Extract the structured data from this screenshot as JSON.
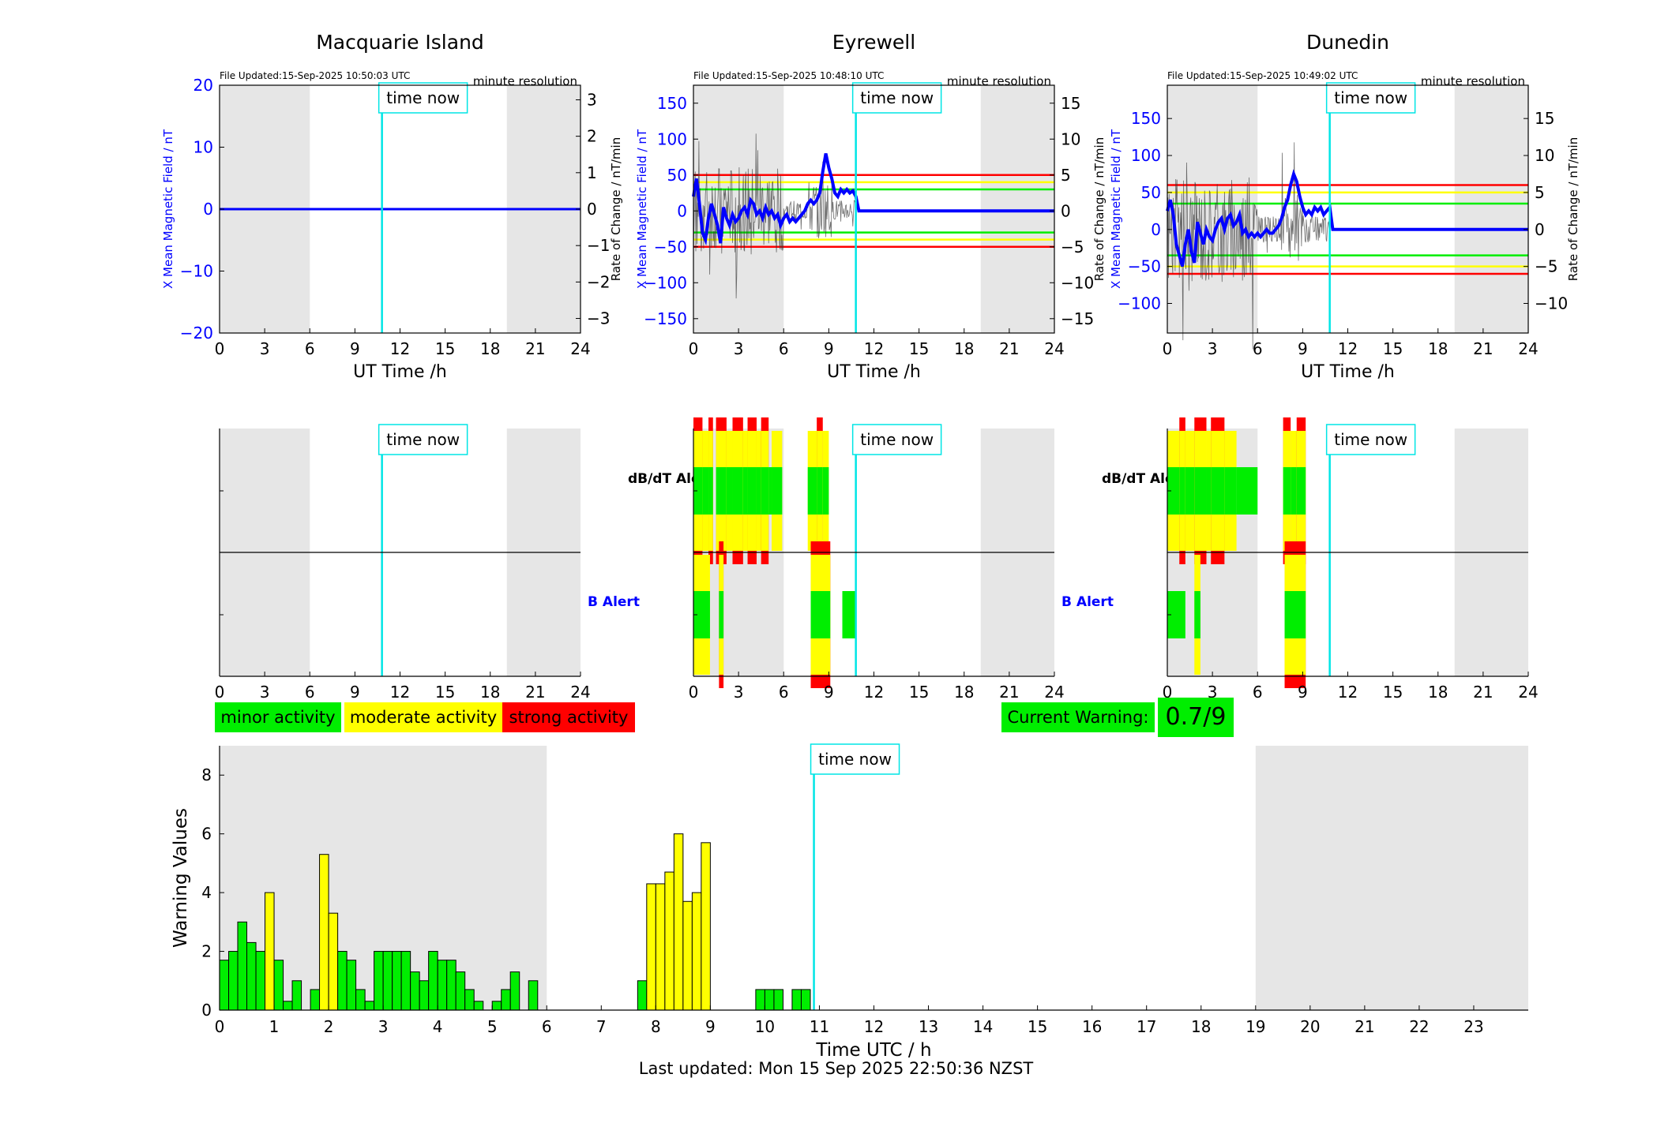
{
  "colors": {
    "night": "#e6e6e6",
    "time_now": "#00e5e5",
    "x_field": "#0000ff",
    "rate": "#333333",
    "minor": "#00ee00",
    "moderate": "#ffff00",
    "strong": "#ff0000",
    "b_alert_label": "#0000ff"
  },
  "labels": {
    "time_now": "time now",
    "file_updated_prefix": "File Updated:",
    "resolution": "minute resolution",
    "ut_xlabel": "UT Time /h",
    "ylabel_left": "X Mean Magnetic Field / nT",
    "ylabel_right": "Rate of Change / nT/min",
    "dbdt_alert": "dB/dT Alert",
    "b_alert": "B Alert"
  },
  "legend": {
    "minor": "minor activity",
    "moderate": "moderate activity",
    "strong": "strong activity",
    "current_warning_label": "Current Warning:",
    "current_warning_value": "0.7/9"
  },
  "footer": "Last updated: Mon 15 Sep 2025 22:50:36 NZST",
  "chart_data": [
    {
      "type": "line",
      "title": "Macquarie Island",
      "file_updated": "15-Sep-2025 10:50:03 UTC",
      "xlabel": "UT Time /h",
      "ylabel_left": "X Mean Magnetic Field / nT",
      "ylabel_right": "Rate of Change / nT/min",
      "xlim": [
        0,
        24
      ],
      "xticks": [
        0,
        3,
        6,
        9,
        12,
        15,
        18,
        21,
        24
      ],
      "ylim": [
        -20,
        20
      ],
      "yticks": [
        -20,
        -10,
        0,
        10,
        20
      ],
      "y2lim": [
        -3.4,
        3.4
      ],
      "y2ticks": [
        -3,
        -2,
        -1,
        0,
        1,
        2,
        3
      ],
      "night_bands": [
        [
          0,
          6
        ],
        [
          19.1,
          24
        ]
      ],
      "time_now": 10.8,
      "threshold_lines": [],
      "series": [
        {
          "x": [
            0,
            24
          ],
          "y": [
            0,
            0
          ]
        }
      ]
    },
    {
      "type": "line",
      "title": "Eyrewell",
      "file_updated": "15-Sep-2025 10:48:10 UTC",
      "xlabel": "UT Time /h",
      "ylabel_left": "X Mean Magnetic Field / nT",
      "ylabel_right": "Rate of Change / nT/min",
      "xlim": [
        0,
        24
      ],
      "xticks": [
        0,
        3,
        6,
        9,
        12,
        15,
        18,
        21,
        24
      ],
      "ylim": [
        -170,
        175
      ],
      "yticks": [
        -150,
        -100,
        -50,
        0,
        50,
        100,
        150
      ],
      "y2lim": [
        -17,
        17.5
      ],
      "y2ticks": [
        -15,
        -10,
        -5,
        0,
        5,
        10,
        15
      ],
      "night_bands": [
        [
          0,
          6
        ],
        [
          19.1,
          24
        ]
      ],
      "time_now": 10.8,
      "threshold_lines": [
        {
          "y": 50,
          "color": "#ff0000"
        },
        {
          "y": 40,
          "color": "#ffff00"
        },
        {
          "y": 30,
          "color": "#00ee00"
        },
        {
          "y": -30,
          "color": "#00ee00"
        },
        {
          "y": -40,
          "color": "#ffff00"
        },
        {
          "y": -50,
          "color": "#ff0000"
        }
      ],
      "series": [
        {
          "x": [
            0,
            0.2,
            0.4,
            0.6,
            0.8,
            1.0,
            1.2,
            1.4,
            1.6,
            1.8,
            2.0,
            2.2,
            2.4,
            2.6,
            2.8,
            3.0,
            3.2,
            3.4,
            3.6,
            3.8,
            4.0,
            4.2,
            4.4,
            4.6,
            4.8,
            5.0,
            5.2,
            5.4,
            5.6,
            5.8,
            6.0,
            6.2,
            6.4,
            6.6,
            6.8,
            7.0,
            7.2,
            7.4,
            7.6,
            7.8,
            8.0,
            8.2,
            8.4,
            8.6,
            8.8,
            9.0,
            9.2,
            9.4,
            9.6,
            9.8,
            10.0,
            10.2,
            10.4,
            10.6,
            10.8,
            11,
            24
          ],
          "y": [
            20,
            45,
            10,
            -30,
            -40,
            -10,
            10,
            -5,
            -20,
            -45,
            5,
            -10,
            -20,
            -5,
            -15,
            -10,
            0,
            5,
            -5,
            15,
            10,
            -5,
            0,
            -10,
            5,
            -5,
            0,
            -10,
            -5,
            -20,
            -10,
            -5,
            -15,
            -10,
            -15,
            -10,
            -5,
            0,
            10,
            15,
            10,
            15,
            25,
            55,
            80,
            60,
            45,
            25,
            20,
            30,
            25,
            30,
            25,
            28,
            20,
            0,
            0
          ]
        }
      ]
    },
    {
      "type": "line",
      "title": "Dunedin",
      "file_updated": "15-Sep-2025 10:49:02 UTC",
      "xlabel": "UT Time /h",
      "ylabel_left": "X Mean Magnetic Field / nT",
      "ylabel_right": "Rate of Change / nT/min",
      "xlim": [
        0,
        24
      ],
      "xticks": [
        0,
        3,
        6,
        9,
        12,
        15,
        18,
        21,
        24
      ],
      "ylim": [
        -140,
        195
      ],
      "yticks": [
        -100,
        -50,
        0,
        50,
        100,
        150
      ],
      "y2lim": [
        -14,
        19.5
      ],
      "y2ticks": [
        -10,
        -5,
        0,
        5,
        10,
        15
      ],
      "night_bands": [
        [
          0,
          6
        ],
        [
          19.1,
          24
        ]
      ],
      "time_now": 10.8,
      "threshold_lines": [
        {
          "y": 60,
          "color": "#ff0000"
        },
        {
          "y": 50,
          "color": "#ffff00"
        },
        {
          "y": 35,
          "color": "#00ee00"
        },
        {
          "y": -35,
          "color": "#00ee00"
        },
        {
          "y": -50,
          "color": "#ffff00"
        },
        {
          "y": -60,
          "color": "#ff0000"
        }
      ],
      "series": [
        {
          "x": [
            0,
            0.2,
            0.4,
            0.6,
            0.8,
            1.0,
            1.2,
            1.4,
            1.6,
            1.8,
            2.0,
            2.2,
            2.4,
            2.6,
            2.8,
            3.0,
            3.2,
            3.4,
            3.6,
            3.8,
            4.0,
            4.2,
            4.4,
            4.6,
            4.8,
            5.0,
            5.2,
            5.4,
            5.6,
            5.8,
            6.0,
            6.2,
            6.4,
            6.6,
            6.8,
            7.0,
            7.2,
            7.4,
            7.6,
            7.8,
            8.0,
            8.2,
            8.4,
            8.6,
            8.8,
            9.0,
            9.2,
            9.4,
            9.6,
            9.8,
            10.0,
            10.2,
            10.4,
            10.6,
            10.8,
            11,
            24
          ],
          "y": [
            25,
            40,
            20,
            -20,
            -35,
            -50,
            -20,
            0,
            -30,
            -45,
            10,
            -5,
            -20,
            0,
            -10,
            -15,
            0,
            10,
            15,
            0,
            15,
            20,
            5,
            10,
            20,
            -5,
            0,
            -10,
            -5,
            -10,
            -5,
            -10,
            -5,
            0,
            -5,
            -5,
            0,
            5,
            15,
            30,
            40,
            60,
            75,
            65,
            45,
            30,
            20,
            25,
            20,
            30,
            25,
            30,
            20,
            25,
            30,
            0,
            0
          ]
        }
      ]
    },
    {
      "type": "alert_bands",
      "station": "Macquarie Island",
      "xticks": [
        0,
        3,
        6,
        9,
        12,
        15,
        18,
        21,
        24
      ],
      "night_bands": [
        [
          0,
          6
        ],
        [
          19.1,
          24
        ]
      ],
      "time_now": 10.8,
      "dbdt_levels": [],
      "b_levels": []
    },
    {
      "type": "alert_bands",
      "station": "Eyrewell",
      "xticks": [
        0,
        3,
        6,
        9,
        12,
        15,
        18,
        21,
        24
      ],
      "night_bands": [
        [
          0,
          6
        ],
        [
          19.1,
          24
        ]
      ],
      "time_now": 10.8,
      "dbdt_levels": [
        {
          "x": [
            0.0,
            0.6
          ],
          "level": 3
        },
        {
          "x": [
            0.6,
            1.0
          ],
          "level": 2
        },
        {
          "x": [
            1.0,
            1.3
          ],
          "level": 3
        },
        {
          "x": [
            1.5,
            2.2
          ],
          "level": 3
        },
        {
          "x": [
            2.2,
            2.6
          ],
          "level": 2
        },
        {
          "x": [
            2.6,
            3.3
          ],
          "level": 3
        },
        {
          "x": [
            3.3,
            3.6
          ],
          "level": 2
        },
        {
          "x": [
            3.6,
            4.2
          ],
          "level": 3
        },
        {
          "x": [
            4.2,
            4.5
          ],
          "level": 2
        },
        {
          "x": [
            4.5,
            5.0
          ],
          "level": 3
        },
        {
          "x": [
            5.0,
            5.2
          ],
          "level": 1
        },
        {
          "x": [
            5.2,
            5.9
          ],
          "level": 2
        },
        {
          "x": [
            7.6,
            8.2
          ],
          "level": 2
        },
        {
          "x": [
            8.2,
            8.6
          ],
          "level": 3
        },
        {
          "x": [
            8.6,
            9.0
          ],
          "level": 2
        }
      ],
      "b_levels": [
        {
          "x": [
            0.0,
            1.1
          ],
          "level": 2
        },
        {
          "x": [
            1.7,
            2.0
          ],
          "level": 3
        },
        {
          "x": [
            7.8,
            9.1
          ],
          "level": 3
        },
        {
          "x": [
            9.9,
            10.8
          ],
          "level": 1
        }
      ]
    },
    {
      "type": "alert_bands",
      "station": "Dunedin",
      "xticks": [
        0,
        3,
        6,
        9,
        12,
        15,
        18,
        21,
        24
      ],
      "night_bands": [
        [
          0,
          6
        ],
        [
          19.1,
          24
        ]
      ],
      "time_now": 10.8,
      "dbdt_levels": [
        {
          "x": [
            0.0,
            0.8
          ],
          "level": 2
        },
        {
          "x": [
            0.8,
            1.2
          ],
          "level": 3
        },
        {
          "x": [
            1.2,
            1.8
          ],
          "level": 2
        },
        {
          "x": [
            1.8,
            2.6
          ],
          "level": 3
        },
        {
          "x": [
            2.6,
            2.9
          ],
          "level": 2
        },
        {
          "x": [
            2.9,
            3.8
          ],
          "level": 3
        },
        {
          "x": [
            3.8,
            4.6
          ],
          "level": 2
        },
        {
          "x": [
            4.6,
            6.0
          ],
          "level": 1
        },
        {
          "x": [
            7.7,
            8.2
          ],
          "level": 3
        },
        {
          "x": [
            8.2,
            8.6
          ],
          "level": 2
        },
        {
          "x": [
            8.6,
            9.2
          ],
          "level": 3
        }
      ],
      "b_levels": [
        {
          "x": [
            0.0,
            1.2
          ],
          "level": 1
        },
        {
          "x": [
            1.8,
            2.2
          ],
          "level": 2
        },
        {
          "x": [
            7.8,
            9.2
          ],
          "level": 3
        }
      ]
    },
    {
      "type": "bar",
      "xlabel": "Time UTC / h",
      "ylabel": "Warning Values",
      "xlim": [
        0,
        24
      ],
      "xticks": [
        0,
        1,
        2,
        3,
        4,
        5,
        6,
        7,
        8,
        9,
        10,
        11,
        12,
        13,
        14,
        15,
        16,
        17,
        18,
        19,
        20,
        21,
        22,
        23
      ],
      "ylim": [
        0,
        9
      ],
      "yticks": [
        0,
        2,
        4,
        6,
        8
      ],
      "night_bands": [
        [
          0,
          6
        ],
        [
          19,
          24
        ]
      ],
      "time_now": 10.9,
      "bar_width_h": 0.167,
      "bars": [
        {
          "x": 0.0,
          "value": 1.7,
          "level": "minor"
        },
        {
          "x": 0.167,
          "value": 2.0,
          "level": "minor"
        },
        {
          "x": 0.333,
          "value": 3.0,
          "level": "minor"
        },
        {
          "x": 0.5,
          "value": 2.3,
          "level": "minor"
        },
        {
          "x": 0.667,
          "value": 2.0,
          "level": "minor"
        },
        {
          "x": 0.833,
          "value": 4.0,
          "level": "moderate"
        },
        {
          "x": 1.0,
          "value": 1.7,
          "level": "minor"
        },
        {
          "x": 1.167,
          "value": 0.3,
          "level": "minor"
        },
        {
          "x": 1.333,
          "value": 1.0,
          "level": "minor"
        },
        {
          "x": 1.667,
          "value": 0.7,
          "level": "minor"
        },
        {
          "x": 1.833,
          "value": 5.3,
          "level": "moderate"
        },
        {
          "x": 2.0,
          "value": 3.3,
          "level": "moderate"
        },
        {
          "x": 2.167,
          "value": 2.0,
          "level": "minor"
        },
        {
          "x": 2.333,
          "value": 1.7,
          "level": "minor"
        },
        {
          "x": 2.5,
          "value": 0.7,
          "level": "minor"
        },
        {
          "x": 2.667,
          "value": 0.3,
          "level": "minor"
        },
        {
          "x": 2.833,
          "value": 2.0,
          "level": "minor"
        },
        {
          "x": 3.0,
          "value": 2.0,
          "level": "minor"
        },
        {
          "x": 3.167,
          "value": 2.0,
          "level": "minor"
        },
        {
          "x": 3.333,
          "value": 2.0,
          "level": "minor"
        },
        {
          "x": 3.5,
          "value": 1.3,
          "level": "minor"
        },
        {
          "x": 3.667,
          "value": 1.0,
          "level": "minor"
        },
        {
          "x": 3.833,
          "value": 2.0,
          "level": "minor"
        },
        {
          "x": 4.0,
          "value": 1.7,
          "level": "minor"
        },
        {
          "x": 4.167,
          "value": 1.7,
          "level": "minor"
        },
        {
          "x": 4.333,
          "value": 1.3,
          "level": "minor"
        },
        {
          "x": 4.5,
          "value": 0.7,
          "level": "minor"
        },
        {
          "x": 4.667,
          "value": 0.3,
          "level": "minor"
        },
        {
          "x": 5.0,
          "value": 0.3,
          "level": "minor"
        },
        {
          "x": 5.167,
          "value": 0.7,
          "level": "minor"
        },
        {
          "x": 5.333,
          "value": 1.3,
          "level": "minor"
        },
        {
          "x": 5.667,
          "value": 1.0,
          "level": "minor"
        },
        {
          "x": 7.667,
          "value": 1.0,
          "level": "minor"
        },
        {
          "x": 7.833,
          "value": 4.3,
          "level": "moderate"
        },
        {
          "x": 8.0,
          "value": 4.3,
          "level": "moderate"
        },
        {
          "x": 8.167,
          "value": 4.7,
          "level": "moderate"
        },
        {
          "x": 8.333,
          "value": 6.0,
          "level": "moderate"
        },
        {
          "x": 8.5,
          "value": 3.7,
          "level": "moderate"
        },
        {
          "x": 8.667,
          "value": 4.0,
          "level": "moderate"
        },
        {
          "x": 8.833,
          "value": 5.7,
          "level": "moderate"
        },
        {
          "x": 9.833,
          "value": 0.7,
          "level": "minor"
        },
        {
          "x": 10.0,
          "value": 0.7,
          "level": "minor"
        },
        {
          "x": 10.167,
          "value": 0.7,
          "level": "minor"
        },
        {
          "x": 10.5,
          "value": 0.7,
          "level": "minor"
        },
        {
          "x": 10.667,
          "value": 0.7,
          "level": "minor"
        }
      ]
    }
  ]
}
